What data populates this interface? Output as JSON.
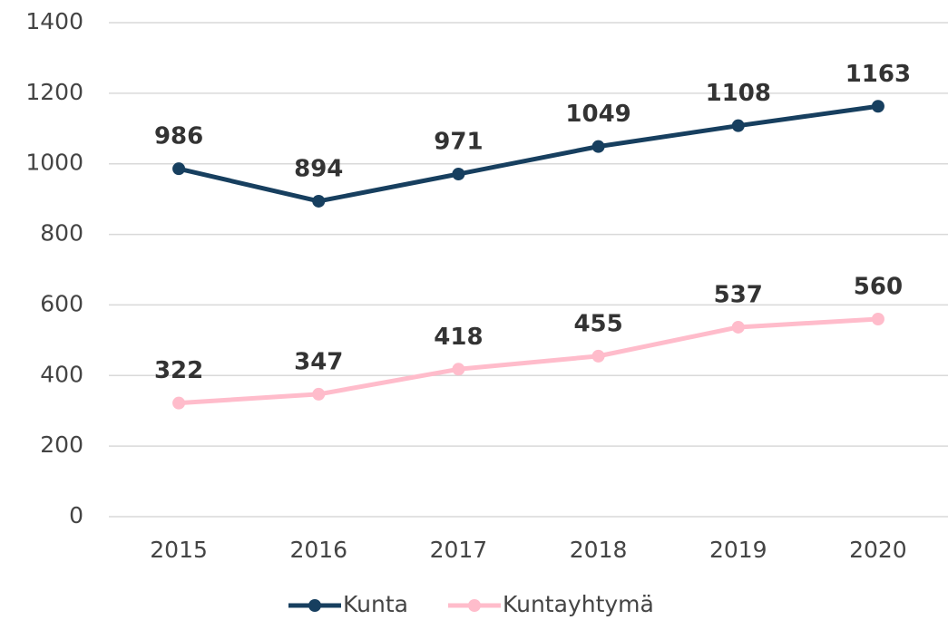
{
  "chart_data": {
    "type": "line",
    "categories": [
      "2015",
      "2016",
      "2017",
      "2018",
      "2019",
      "2020"
    ],
    "series": [
      {
        "name": "Kunta",
        "color": "#173f5f",
        "values": [
          986,
          894,
          971,
          1049,
          1108,
          1163
        ]
      },
      {
        "name": "Kuntayhtymä",
        "color": "#ffbccb",
        "values": [
          322,
          347,
          418,
          455,
          537,
          560
        ]
      }
    ],
    "ylim": [
      0,
      1400
    ],
    "yticks": [
      0,
      200,
      400,
      600,
      800,
      1000,
      1200,
      1400
    ],
    "grid": true,
    "legend": "bottom"
  }
}
